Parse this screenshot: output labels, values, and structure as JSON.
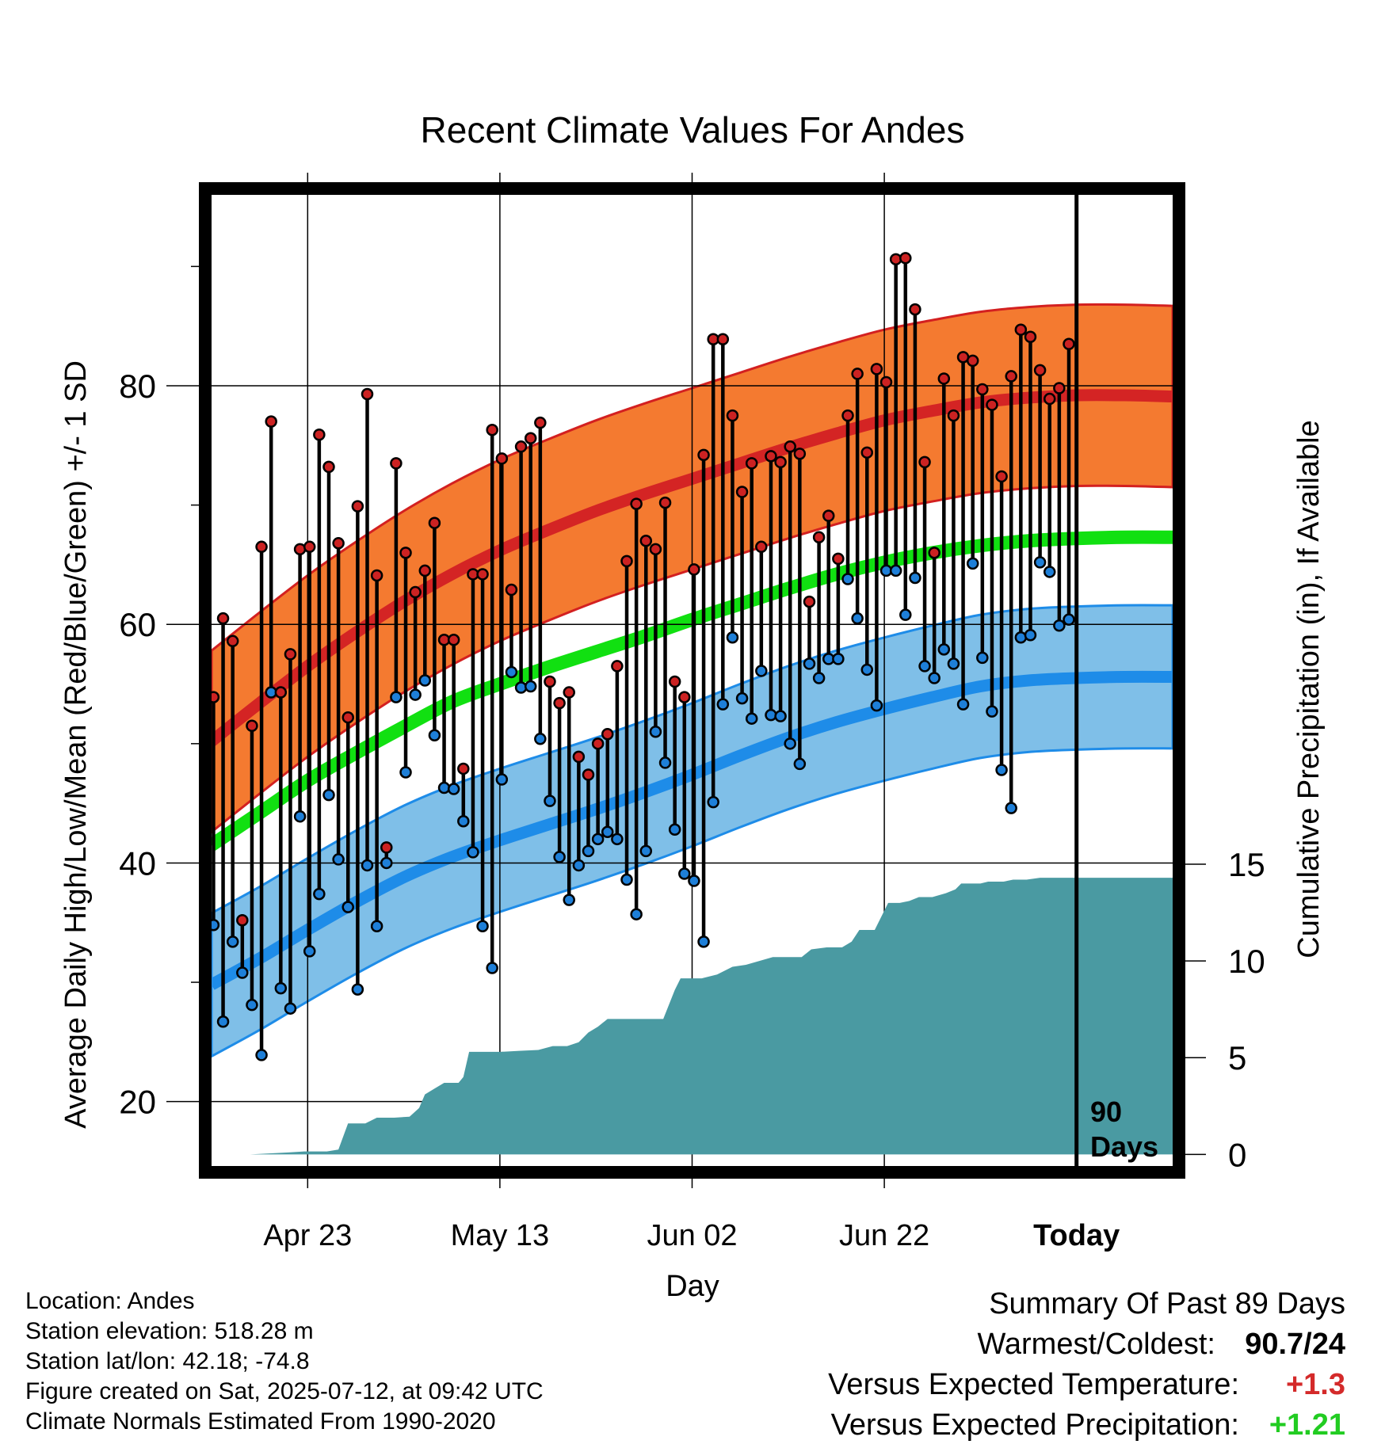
{
  "chart_data": {
    "type": "line",
    "title": "Recent Climate Values For Andes",
    "xlabel": "Day",
    "ylabel": "Average Daily High/Low/Mean (Red/Blue/Green) +/- 1 SD",
    "y2label": "Cumulative Precipitation (in), If Available",
    "x_ticks": [
      {
        "day": 10,
        "label": "Apr 23"
      },
      {
        "day": 30,
        "label": "May 13"
      },
      {
        "day": 50,
        "label": "Jun 02"
      },
      {
        "day": 70,
        "label": "Jun 22"
      },
      {
        "day": 90,
        "label": "Today"
      }
    ],
    "x_range": [
      0,
      100
    ],
    "y_range": [
      14.6,
      96
    ],
    "y_ticks": [
      20,
      40,
      60,
      80
    ],
    "y_minor_ticks": [
      30,
      50,
      70,
      90
    ],
    "y2_range": [
      -0.6,
      49.6
    ],
    "y2_ticks": [
      0,
      5,
      10,
      15
    ],
    "today_day": 90,
    "period_label": [
      "90",
      "Days"
    ],
    "normal_high": [
      [
        0,
        50.2
      ],
      [
        5,
        53.4
      ],
      [
        10,
        56.5
      ],
      [
        15,
        59.3
      ],
      [
        20,
        61.9
      ],
      [
        25,
        64.2
      ],
      [
        30,
        66.2
      ],
      [
        35,
        67.9
      ],
      [
        40,
        69.5
      ],
      [
        45,
        70.9
      ],
      [
        50,
        72.2
      ],
      [
        55,
        73.5
      ],
      [
        60,
        74.8
      ],
      [
        65,
        76.0
      ],
      [
        70,
        77.1
      ],
      [
        75,
        77.9
      ],
      [
        80,
        78.6
      ],
      [
        85,
        79.0
      ],
      [
        90,
        79.2
      ],
      [
        95,
        79.2
      ],
      [
        100,
        79.1
      ]
    ],
    "normal_high_sd": 7.6,
    "normal_low": [
      [
        0,
        29.8
      ],
      [
        5,
        32.0
      ],
      [
        10,
        34.4
      ],
      [
        15,
        36.7
      ],
      [
        20,
        38.8
      ],
      [
        25,
        40.5
      ],
      [
        30,
        41.9
      ],
      [
        35,
        43.2
      ],
      [
        40,
        44.5
      ],
      [
        45,
        45.9
      ],
      [
        50,
        47.4
      ],
      [
        55,
        49.0
      ],
      [
        60,
        50.5
      ],
      [
        65,
        51.8
      ],
      [
        70,
        52.9
      ],
      [
        75,
        53.9
      ],
      [
        80,
        54.8
      ],
      [
        85,
        55.3
      ],
      [
        90,
        55.5
      ],
      [
        95,
        55.6
      ],
      [
        100,
        55.6
      ]
    ],
    "normal_low_sd": 6.0,
    "normal_mean": [
      [
        0,
        41.5
      ],
      [
        5,
        44.2
      ],
      [
        10,
        46.9
      ],
      [
        15,
        49.2
      ],
      [
        20,
        51.4
      ],
      [
        25,
        53.5
      ],
      [
        30,
        55.0
      ],
      [
        35,
        56.4
      ],
      [
        40,
        57.7
      ],
      [
        45,
        59.0
      ],
      [
        50,
        60.4
      ],
      [
        55,
        61.7
      ],
      [
        60,
        63.0
      ],
      [
        65,
        64.2
      ],
      [
        70,
        65.2
      ],
      [
        75,
        66.0
      ],
      [
        80,
        66.6
      ],
      [
        85,
        67.0
      ],
      [
        90,
        67.2
      ],
      [
        95,
        67.3
      ],
      [
        100,
        67.3
      ]
    ],
    "daily_high": [
      53.9,
      60.5,
      58.6,
      35.2,
      51.5,
      66.5,
      77.0,
      54.3,
      57.5,
      66.3,
      66.5,
      75.9,
      73.2,
      66.8,
      52.2,
      69.9,
      79.3,
      64.1,
      41.3,
      73.5,
      66.0,
      62.7,
      64.5,
      68.5,
      58.7,
      58.7,
      47.9,
      64.2,
      64.2,
      76.3,
      73.9,
      62.9,
      74.9,
      75.6,
      76.9,
      55.2,
      53.4,
      54.3,
      48.9,
      47.4,
      50.0,
      50.8,
      56.5,
      65.3,
      70.1,
      67.0,
      66.3,
      70.2,
      55.2,
      53.9,
      64.6,
      74.2,
      83.9,
      83.9,
      77.5,
      71.1,
      73.5,
      66.5,
      74.1,
      73.6,
      74.9,
      74.3,
      61.9,
      67.3,
      69.1,
      65.5,
      77.5,
      81.0,
      74.4,
      81.4,
      80.3,
      90.6,
      90.7,
      86.4,
      73.6,
      66.0,
      80.6,
      77.5,
      82.4,
      82.1,
      79.7,
      78.4,
      72.4,
      80.8,
      84.7,
      84.1,
      81.3,
      78.9,
      79.8,
      83.5
    ],
    "daily_low": [
      34.8,
      26.7,
      33.4,
      30.8,
      28.1,
      23.9,
      54.3,
      29.5,
      27.8,
      43.9,
      32.6,
      37.4,
      45.7,
      40.3,
      36.3,
      29.4,
      39.8,
      34.7,
      40.0,
      53.9,
      47.6,
      54.1,
      55.3,
      50.7,
      46.3,
      46.2,
      43.5,
      40.9,
      34.7,
      31.2,
      47.0,
      56.0,
      54.7,
      54.8,
      50.4,
      45.2,
      40.5,
      36.9,
      39.8,
      41.0,
      42.0,
      42.6,
      42.0,
      38.6,
      35.7,
      41.0,
      51.0,
      48.4,
      42.8,
      39.1,
      38.5,
      33.4,
      45.1,
      53.3,
      58.9,
      53.8,
      52.1,
      56.1,
      52.4,
      52.3,
      50.0,
      48.3,
      56.7,
      55.5,
      57.1,
      57.1,
      63.8,
      60.5,
      56.2,
      53.2,
      64.5,
      64.5,
      60.8,
      63.9,
      56.5,
      55.5,
      57.9,
      56.7,
      53.3,
      65.1,
      57.2,
      52.7,
      47.8,
      44.6,
      58.9,
      59.1,
      65.2,
      64.4,
      59.9,
      60.4
    ],
    "cumulative_precip": [
      [
        0,
        0.0
      ],
      [
        4,
        0.0
      ],
      [
        6,
        0.05
      ],
      [
        8,
        0.1
      ],
      [
        9.6,
        0.15
      ],
      [
        12,
        0.15
      ],
      [
        13.2,
        0.25
      ],
      [
        14.2,
        1.6
      ],
      [
        16,
        1.6
      ],
      [
        17.2,
        1.9
      ],
      [
        19,
        1.9
      ],
      [
        20.6,
        1.95
      ],
      [
        21.6,
        2.4
      ],
      [
        22.2,
        3.1
      ],
      [
        23.2,
        3.4
      ],
      [
        24.2,
        3.7
      ],
      [
        25.7,
        3.7
      ],
      [
        26.2,
        4.0
      ],
      [
        26.8,
        5.3
      ],
      [
        28,
        5.3
      ],
      [
        30,
        5.3
      ],
      [
        32,
        5.35
      ],
      [
        34,
        5.4
      ],
      [
        35.5,
        5.6
      ],
      [
        37,
        5.6
      ],
      [
        38.2,
        5.8
      ],
      [
        39.2,
        6.3
      ],
      [
        40.2,
        6.6
      ],
      [
        41.2,
        7.0
      ],
      [
        42.3,
        7.0
      ],
      [
        47,
        7.0
      ],
      [
        48.2,
        8.5
      ],
      [
        48.8,
        9.1
      ],
      [
        50,
        9.1
      ],
      [
        51,
        9.1
      ],
      [
        52.6,
        9.3
      ],
      [
        54.2,
        9.7
      ],
      [
        55.6,
        9.8
      ],
      [
        57,
        10.0
      ],
      [
        58.4,
        10.2
      ],
      [
        60,
        10.2
      ],
      [
        61.4,
        10.2
      ],
      [
        62.4,
        10.6
      ],
      [
        64,
        10.7
      ],
      [
        65.6,
        10.7
      ],
      [
        66.6,
        11.0
      ],
      [
        67.4,
        11.6
      ],
      [
        69,
        11.6
      ],
      [
        69.6,
        12.2
      ],
      [
        70.4,
        13.0
      ],
      [
        71.6,
        13.0
      ],
      [
        72.6,
        13.1
      ],
      [
        73.6,
        13.3
      ],
      [
        75,
        13.3
      ],
      [
        76.4,
        13.5
      ],
      [
        77.4,
        13.7
      ],
      [
        78,
        14.0
      ],
      [
        80,
        14.0
      ],
      [
        80.8,
        14.1
      ],
      [
        82.4,
        14.1
      ],
      [
        83.4,
        14.2
      ],
      [
        84.8,
        14.2
      ],
      [
        86.2,
        14.3
      ],
      [
        88,
        14.3
      ],
      [
        90,
        14.3
      ],
      [
        100,
        14.3
      ]
    ]
  },
  "info": {
    "location": "Location: Andes",
    "elevation": "Station elevation: 518.28 m",
    "latlon": "Station lat/lon: 42.18; -74.8",
    "created": "Figure created on Sat, 2025-07-12, at 09:42 UTC",
    "normals": "Climate Normals Estimated From 1990-2020"
  },
  "summary": {
    "title": "Summary Of Past 89 Days",
    "warm_cold_label": "Warmest/Coldest:",
    "warm_cold_value": "90.7/24",
    "temp_label": "Versus Expected Temperature:",
    "temp_value": "+1.3",
    "precip_label": "Versus Expected Precipitation:",
    "precip_value": "+1.21",
    "colors": {
      "temp": "#d42a2a",
      "precip": "#22cc22"
    }
  },
  "colors": {
    "high_band": "#f47a30",
    "high_band_edge": "#d32020",
    "high_line": "#d42424",
    "low_band": "#7fbfe8",
    "low_band_edge": "#1e8ce8",
    "low_line": "#1e8ce8",
    "mean_line": "#11e011",
    "precip_fill": "#4a9aa2",
    "high_dot": "#cc2222",
    "low_dot": "#1e7fd8"
  }
}
